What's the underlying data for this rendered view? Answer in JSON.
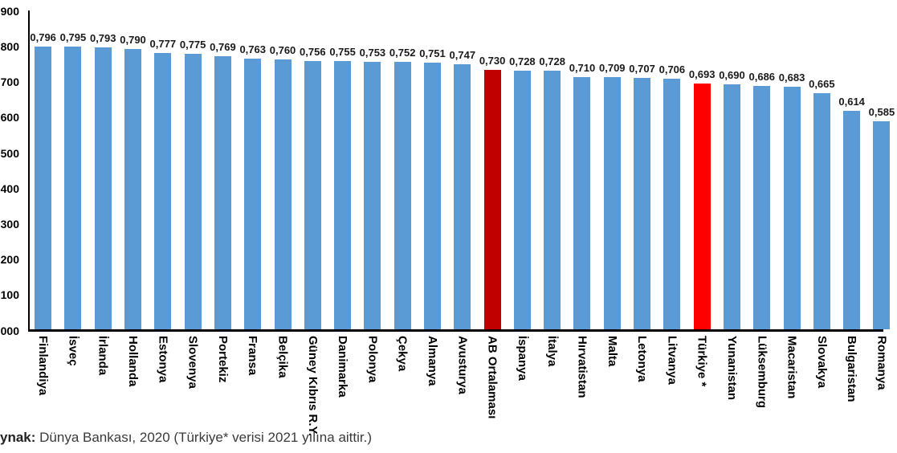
{
  "source_note": {
    "bold": "ynak:",
    "text": " Dünya Bankası, 2020 (Türkiye* verisi 2021 yılına aittir.)"
  },
  "colors": {
    "bar_default": "#5B9BD5",
    "bar_eu_average": "#C00000",
    "bar_turkey": "#FF0000",
    "axis": "#000000"
  },
  "chart_data": {
    "type": "bar",
    "title": "",
    "categories": [
      "Finlandiya",
      "İsveç",
      "İrlanda",
      "Hollanda",
      "Estonya",
      "Slovenya",
      "Portekiz",
      "Fransa",
      "Belçika",
      "Güney Kıbrıs R.Y.",
      "Danimarka",
      "Polonya",
      "Çekya",
      "Almanya",
      "Avusturya",
      "AB Ortalaması",
      "İspanya",
      "İtalya",
      "Hırvatistan",
      "Malta",
      "Letonya",
      "Litvanya",
      "Türkiye *",
      "Yunanistan",
      "Lüksemburg",
      "Macaristan",
      "Slovakya",
      "Bulgaristan",
      "Romanya"
    ],
    "values": [
      0.796,
      0.795,
      0.793,
      0.79,
      0.777,
      0.775,
      0.769,
      0.763,
      0.76,
      0.756,
      0.755,
      0.753,
      0.752,
      0.751,
      0.747,
      0.73,
      0.728,
      0.728,
      0.71,
      0.709,
      0.707,
      0.706,
      0.693,
      0.69,
      0.686,
      0.683,
      0.665,
      0.614,
      0.585
    ],
    "value_labels": [
      "0,796",
      "0,795",
      "0,793",
      "0,790",
      "0,777",
      "0,775",
      "0,769",
      "0,763",
      "0,760",
      "0,756",
      "0,755",
      "0,753",
      "0,752",
      "0,751",
      "0,747",
      "0,730",
      "0,728",
      "0,728",
      "0,710",
      "0,709",
      "0,707",
      "0,706",
      "0,693",
      "0,690",
      "0,686",
      "0,683",
      "0,665",
      "0,614",
      "0,585"
    ],
    "bar_colors": [
      "#5B9BD5",
      "#5B9BD5",
      "#5B9BD5",
      "#5B9BD5",
      "#5B9BD5",
      "#5B9BD5",
      "#5B9BD5",
      "#5B9BD5",
      "#5B9BD5",
      "#5B9BD5",
      "#5B9BD5",
      "#5B9BD5",
      "#5B9BD5",
      "#5B9BD5",
      "#5B9BD5",
      "#C00000",
      "#5B9BD5",
      "#5B9BD5",
      "#5B9BD5",
      "#5B9BD5",
      "#5B9BD5",
      "#5B9BD5",
      "#FF0000",
      "#5B9BD5",
      "#5B9BD5",
      "#5B9BD5",
      "#5B9BD5",
      "#5B9BD5",
      "#5B9BD5"
    ],
    "y_tick_labels": [
      "000",
      "100",
      "200",
      "300",
      "400",
      "500",
      "600",
      "700",
      "800",
      "900"
    ],
    "ylim": [
      0,
      0.9
    ],
    "grid": false,
    "legend": false
  }
}
